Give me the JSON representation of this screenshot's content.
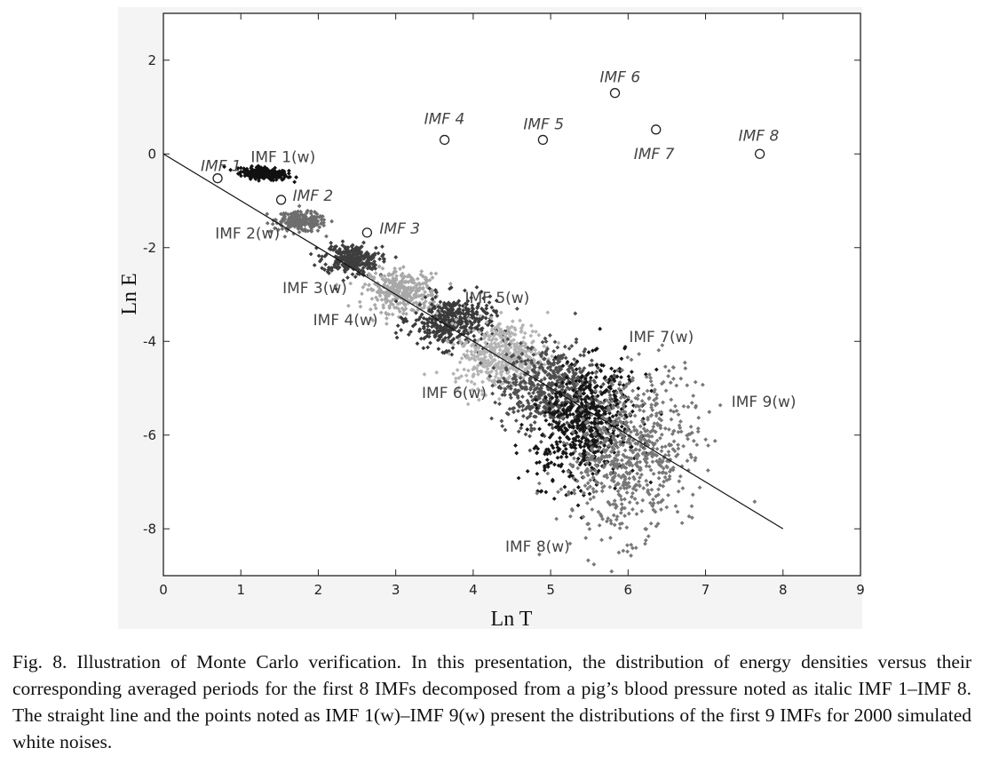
{
  "chart_data": {
    "type": "scatter",
    "xlabel": "Ln T",
    "ylabel": "Ln E",
    "xlim": [
      0,
      9
    ],
    "ylim": [
      -9,
      3
    ],
    "xticks": [
      "0",
      "1",
      "2",
      "3",
      "4",
      "5",
      "6",
      "7",
      "8",
      "9"
    ],
    "yticks": [
      "2",
      "0",
      "-2",
      "-4",
      "-6",
      "-8"
    ],
    "grid": false,
    "reference_line": {
      "x": [
        0,
        8
      ],
      "y": [
        0,
        -8
      ]
    },
    "signal_points": [
      {
        "label": "IMF 1",
        "x": 0.7,
        "y": -0.52
      },
      {
        "label": "IMF 2",
        "x": 1.52,
        "y": -0.98
      },
      {
        "label": "IMF 3",
        "x": 2.63,
        "y": -1.68
      },
      {
        "label": "IMF 4",
        "x": 3.63,
        "y": 0.3
      },
      {
        "label": "IMF 5",
        "x": 4.9,
        "y": 0.3
      },
      {
        "label": "IMF 6",
        "x": 5.83,
        "y": 1.3
      },
      {
        "label": "IMF 7",
        "x": 6.36,
        "y": 0.52
      },
      {
        "label": "IMF 8",
        "x": 7.7,
        "y": 0.0
      }
    ],
    "noise_clusters": [
      {
        "label": "IMF 1(w)",
        "cx": 1.3,
        "cy": -0.42,
        "sx": 0.16,
        "sy": 0.06,
        "n": 260,
        "color": "#111111"
      },
      {
        "label": "IMF 2(w)",
        "cx": 1.78,
        "cy": -1.45,
        "sx": 0.17,
        "sy": 0.1,
        "n": 240,
        "color": "#6e6e6e"
      },
      {
        "label": "IMF 3(w)",
        "cx": 2.42,
        "cy": -2.25,
        "sx": 0.19,
        "sy": 0.16,
        "n": 300,
        "color": "#3e3e3e"
      },
      {
        "label": "IMF 4(w)",
        "cx": 3.08,
        "cy": -2.95,
        "sx": 0.24,
        "sy": 0.22,
        "n": 340,
        "color": "#a8a8a8"
      },
      {
        "label": "IMF 5(w)",
        "cx": 3.72,
        "cy": -3.6,
        "sx": 0.27,
        "sy": 0.27,
        "n": 420,
        "color": "#3a3a3a"
      },
      {
        "label": "IMF 6(w)",
        "cx": 4.38,
        "cy": -4.3,
        "sx": 0.3,
        "sy": 0.36,
        "n": 480,
        "color": "#b4b4b4"
      },
      {
        "label": "IMF 7(w)",
        "cx": 4.98,
        "cy": -5.0,
        "sx": 0.34,
        "sy": 0.45,
        "n": 560,
        "color": "#4f4f4f"
      },
      {
        "label": "IMF 8(w)",
        "cx": 5.48,
        "cy": -5.8,
        "sx": 0.32,
        "sy": 0.62,
        "n": 620,
        "color": "#161616"
      },
      {
        "label": "IMF 9(w)",
        "cx": 6.05,
        "cy": -6.4,
        "sx": 0.42,
        "sy": 0.85,
        "n": 700,
        "color": "#787878"
      }
    ]
  },
  "caption": "Fig. 8.   Illustration of Monte Carlo verification. In this presentation, the distribution of energy densities versus their corresponding averaged periods for the first 8 IMFs decomposed from a pig’s blood pressure noted as italic IMF 1–IMF 8. The straight line and the points noted as IMF 1(w)–IMF 9(w) present the distributions of the first 9 IMFs for 2000 simulated white noises."
}
